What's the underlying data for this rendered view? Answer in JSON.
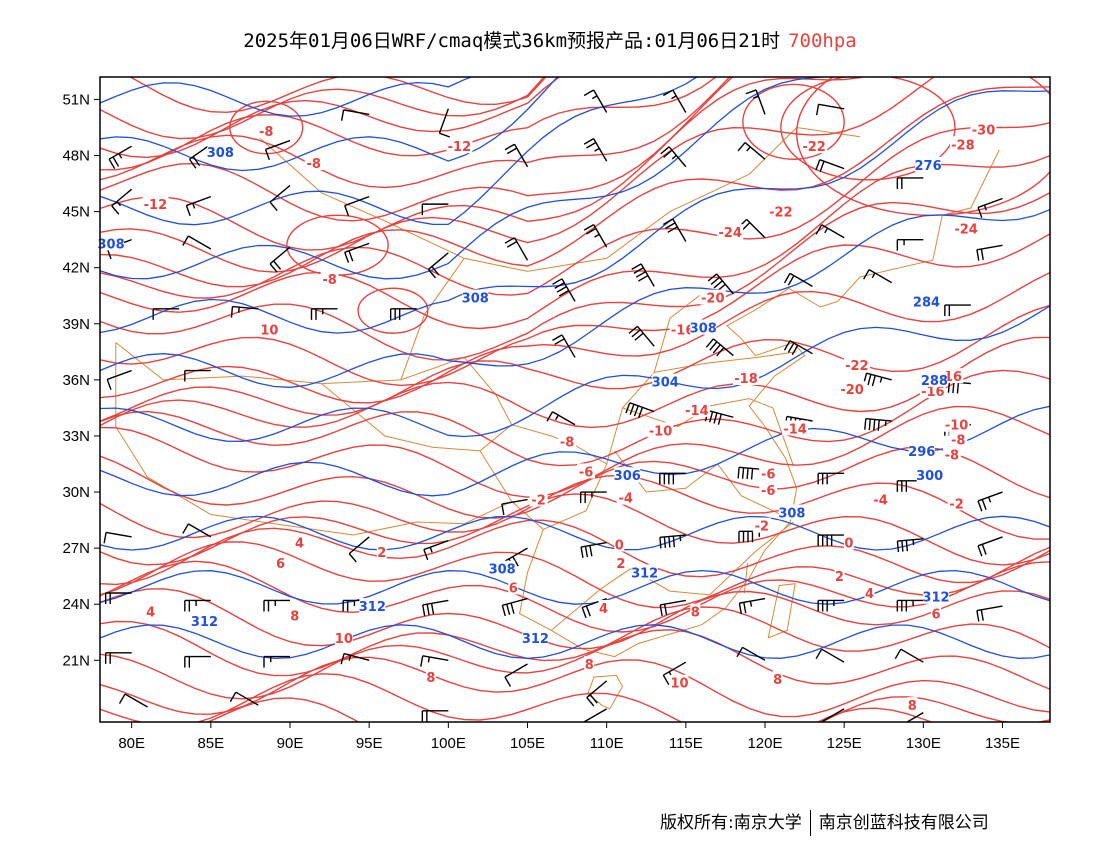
{
  "header": {
    "title": "2025年01月06日WRF/cmaq模式36km预报产品:01月06日21时",
    "level": "700hpa"
  },
  "axes": {
    "lat_ticks": [
      "51N",
      "48N",
      "45N",
      "42N",
      "39N",
      "36N",
      "33N",
      "30N",
      "27N",
      "24N",
      "21N"
    ],
    "lon_ticks": [
      "80E",
      "85E",
      "90E",
      "95E",
      "100E",
      "105E",
      "110E",
      "115E",
      "120E",
      "125E",
      "130E",
      "135E"
    ]
  },
  "colors": {
    "temperature": "#e8423f",
    "height": "#1f4fe0",
    "border": "#d9883a",
    "wind": "#000000"
  },
  "temperature_labels": [
    {
      "text": "-8",
      "lon": 88.5,
      "lat": 49.3
    },
    {
      "text": "-8",
      "lon": 91.5,
      "lat": 47.6
    },
    {
      "text": "-12",
      "lon": 81.5,
      "lat": 45.4
    },
    {
      "text": "-12",
      "lon": 100.7,
      "lat": 48.5
    },
    {
      "text": "-8",
      "lon": 92.5,
      "lat": 41.4
    },
    {
      "text": "10",
      "lon": 88.7,
      "lat": 38.7
    },
    {
      "text": "-24",
      "lon": 117.8,
      "lat": 43.9
    },
    {
      "text": "-22",
      "lon": 121,
      "lat": 45
    },
    {
      "text": "-22",
      "lon": 123.1,
      "lat": 48.5
    },
    {
      "text": "-30",
      "lon": 133.8,
      "lat": 49.4
    },
    {
      "text": "-28",
      "lon": 132.5,
      "lat": 48.6
    },
    {
      "text": "-24",
      "lon": 132.7,
      "lat": 44.1
    },
    {
      "text": "-20",
      "lon": 116.7,
      "lat": 40.4
    },
    {
      "text": "-16",
      "lon": 114.8,
      "lat": 38.7
    },
    {
      "text": "-22",
      "lon": 125.8,
      "lat": 36.8
    },
    {
      "text": "-18",
      "lon": 118.8,
      "lat": 36.1
    },
    {
      "text": "-20",
      "lon": 125.5,
      "lat": 35.5
    },
    {
      "text": "-16",
      "lon": 130.6,
      "lat": 35.4
    },
    {
      "text": "-16",
      "lon": 131.7,
      "lat": 36.2
    },
    {
      "text": "-14",
      "lon": 115.7,
      "lat": 34.4
    },
    {
      "text": "-14",
      "lon": 121.9,
      "lat": 33.4
    },
    {
      "text": "-10",
      "lon": 113.4,
      "lat": 33.3
    },
    {
      "text": "-10",
      "lon": 132.1,
      "lat": 33.6
    },
    {
      "text": "-8",
      "lon": 107.5,
      "lat": 32.7
    },
    {
      "text": "-8",
      "lon": 132.2,
      "lat": 32.8
    },
    {
      "text": "-8",
      "lon": 131.8,
      "lat": 32.0
    },
    {
      "text": "-6",
      "lon": 108.7,
      "lat": 31.1
    },
    {
      "text": "-6",
      "lon": 120.2,
      "lat": 31.0
    },
    {
      "text": "-6",
      "lon": 120.2,
      "lat": 30.1
    },
    {
      "text": "-4",
      "lon": 111.2,
      "lat": 29.7
    },
    {
      "text": "-4",
      "lon": 127.3,
      "lat": 29.6
    },
    {
      "text": "-2",
      "lon": 105.7,
      "lat": 29.6
    },
    {
      "text": "-2",
      "lon": 119.8,
      "lat": 28.2
    },
    {
      "text": "-2",
      "lon": 132.1,
      "lat": 29.4
    },
    {
      "text": "0",
      "lon": 110.8,
      "lat": 27.2
    },
    {
      "text": "0",
      "lon": 125.3,
      "lat": 27.3
    },
    {
      "text": "2",
      "lon": 95.8,
      "lat": 26.8
    },
    {
      "text": "2",
      "lon": 110.9,
      "lat": 26.2
    },
    {
      "text": "2",
      "lon": 124.7,
      "lat": 25.5
    },
    {
      "text": "4",
      "lon": 90.6,
      "lat": 27.3
    },
    {
      "text": "4",
      "lon": 81.2,
      "lat": 23.6
    },
    {
      "text": "4",
      "lon": 109.8,
      "lat": 23.8
    },
    {
      "text": "4",
      "lon": 126.6,
      "lat": 24.6
    },
    {
      "text": "6",
      "lon": 89.4,
      "lat": 26.2
    },
    {
      "text": "6",
      "lon": 104.1,
      "lat": 24.9
    },
    {
      "text": "6",
      "lon": 130.8,
      "lat": 23.5
    },
    {
      "text": "8",
      "lon": 90.3,
      "lat": 23.4
    },
    {
      "text": "8",
      "lon": 115.6,
      "lat": 23.6
    },
    {
      "text": "8",
      "lon": 108.9,
      "lat": 20.8
    },
    {
      "text": "8",
      "lon": 98.9,
      "lat": 20.1
    },
    {
      "text": "8",
      "lon": 120.8,
      "lat": 20.0
    },
    {
      "text": "8",
      "lon": 129.3,
      "lat": 18.6
    },
    {
      "text": "10",
      "lon": 93.4,
      "lat": 22.2
    },
    {
      "text": "10",
      "lon": 114.6,
      "lat": 19.8
    }
  ],
  "height_labels": [
    {
      "text": "308",
      "lon": 85.6,
      "lat": 48.2
    },
    {
      "text": "308",
      "lon": 78.7,
      "lat": 43.3
    },
    {
      "text": "308",
      "lon": 101.7,
      "lat": 40.4
    },
    {
      "text": "308",
      "lon": 116.1,
      "lat": 38.8
    },
    {
      "text": "304",
      "lon": 113.7,
      "lat": 35.9
    },
    {
      "text": "306",
      "lon": 111.3,
      "lat": 30.9
    },
    {
      "text": "308",
      "lon": 121.7,
      "lat": 28.9
    },
    {
      "text": "308",
      "lon": 103.4,
      "lat": 25.9
    },
    {
      "text": "312",
      "lon": 112.4,
      "lat": 25.7
    },
    {
      "text": "312",
      "lon": 95.2,
      "lat": 23.9
    },
    {
      "text": "312",
      "lon": 84.6,
      "lat": 23.1
    },
    {
      "text": "312",
      "lon": 105.5,
      "lat": 22.2
    },
    {
      "text": "312",
      "lon": 130.8,
      "lat": 24.4
    },
    {
      "text": "276",
      "lon": 130.3,
      "lat": 47.5
    },
    {
      "text": "284",
      "lon": 130.2,
      "lat": 40.2
    },
    {
      "text": "288",
      "lon": 130.7,
      "lat": 36.0
    },
    {
      "text": "296",
      "lon": 129.9,
      "lat": 32.2
    },
    {
      "text": "300",
      "lon": 130.4,
      "lat": 30.9
    }
  ],
  "wind_barbs": [
    {
      "lon": 80,
      "lat": 48.5,
      "dir": 240,
      "spd": 25
    },
    {
      "lon": 85,
      "lat": 48.6,
      "dir": 235,
      "spd": 20
    },
    {
      "lon": 90,
      "lat": 48.8,
      "dir": 250,
      "spd": 10
    },
    {
      "lon": 95,
      "lat": 50.2,
      "dir": 280,
      "spd": 10
    },
    {
      "lon": 100,
      "lat": 50.5,
      "dir": 200,
      "spd": 10
    },
    {
      "lon": 110,
      "lat": 50.3,
      "dir": 330,
      "spd": 15
    },
    {
      "lon": 115,
      "lat": 50.3,
      "dir": 330,
      "spd": 15
    },
    {
      "lon": 120,
      "lat": 50.2,
      "dir": 340,
      "spd": 15
    },
    {
      "lon": 125,
      "lat": 50.5,
      "dir": 280,
      "spd": 10
    },
    {
      "lon": 80,
      "lat": 46.2,
      "dir": 230,
      "spd": 15
    },
    {
      "lon": 85,
      "lat": 45.8,
      "dir": 250,
      "spd": 15
    },
    {
      "lon": 90,
      "lat": 46.4,
      "dir": 230,
      "spd": 10
    },
    {
      "lon": 95,
      "lat": 45.8,
      "dir": 250,
      "spd": 10
    },
    {
      "lon": 100,
      "lat": 45.4,
      "dir": 270,
      "spd": 10
    },
    {
      "lon": 105,
      "lat": 47.4,
      "dir": 330,
      "spd": 20
    },
    {
      "lon": 110,
      "lat": 47.7,
      "dir": 330,
      "spd": 25
    },
    {
      "lon": 115,
      "lat": 47.4,
      "dir": 320,
      "spd": 25
    },
    {
      "lon": 120,
      "lat": 47.8,
      "dir": 310,
      "spd": 15
    },
    {
      "lon": 125,
      "lat": 47.3,
      "dir": 290,
      "spd": 20
    },
    {
      "lon": 130,
      "lat": 46.8,
      "dir": 270,
      "spd": 20
    },
    {
      "lon": 135,
      "lat": 45.7,
      "dir": 250,
      "spd": 15
    },
    {
      "lon": 80,
      "lat": 43.5,
      "dir": 250,
      "spd": 10
    },
    {
      "lon": 85,
      "lat": 43.0,
      "dir": 300,
      "spd": 10
    },
    {
      "lon": 90,
      "lat": 43.1,
      "dir": 230,
      "spd": 20
    },
    {
      "lon": 95,
      "lat": 43.3,
      "dir": 250,
      "spd": 20
    },
    {
      "lon": 100,
      "lat": 42.8,
      "dir": 230,
      "spd": 20
    },
    {
      "lon": 105,
      "lat": 42.4,
      "dir": 330,
      "spd": 20
    },
    {
      "lon": 110,
      "lat": 43.1,
      "dir": 330,
      "spd": 25
    },
    {
      "lon": 115,
      "lat": 43.4,
      "dir": 330,
      "spd": 30
    },
    {
      "lon": 120,
      "lat": 43.6,
      "dir": 315,
      "spd": 20
    },
    {
      "lon": 125,
      "lat": 43.6,
      "dir": 300,
      "spd": 15
    },
    {
      "lon": 130,
      "lat": 43.5,
      "dir": 270,
      "spd": 15
    },
    {
      "lon": 135,
      "lat": 43.2,
      "dir": 260,
      "spd": 20
    },
    {
      "lon": 83,
      "lat": 39.8,
      "dir": 270,
      "spd": 10
    },
    {
      "lon": 88,
      "lat": 39.8,
      "dir": 275,
      "spd": 15
    },
    {
      "lon": 93,
      "lat": 39.8,
      "dir": 270,
      "spd": 25
    },
    {
      "lon": 98,
      "lat": 39.8,
      "dir": 270,
      "spd": 30
    },
    {
      "lon": 108,
      "lat": 40.2,
      "dir": 330,
      "spd": 40
    },
    {
      "lon": 113,
      "lat": 41.0,
      "dir": 330,
      "spd": 40
    },
    {
      "lon": 118,
      "lat": 40.6,
      "dir": 320,
      "spd": 40
    },
    {
      "lon": 123,
      "lat": 41.0,
      "dir": 300,
      "spd": 20
    },
    {
      "lon": 128,
      "lat": 41.2,
      "dir": 300,
      "spd": 15
    },
    {
      "lon": 133,
      "lat": 40.0,
      "dir": 270,
      "spd": 20
    },
    {
      "lon": 80,
      "lat": 36.5,
      "dir": 250,
      "spd": 10
    },
    {
      "lon": 85,
      "lat": 36.5,
      "dir": 270,
      "spd": 10
    },
    {
      "lon": 108,
      "lat": 37.2,
      "dir": 330,
      "spd": 20
    },
    {
      "lon": 113,
      "lat": 37.8,
      "dir": 320,
      "spd": 30
    },
    {
      "lon": 118,
      "lat": 37.3,
      "dir": 310,
      "spd": 40
    },
    {
      "lon": 123,
      "lat": 37.4,
      "dir": 300,
      "spd": 30
    },
    {
      "lon": 128,
      "lat": 36.0,
      "dir": 285,
      "spd": 35
    },
    {
      "lon": 133,
      "lat": 35.8,
      "dir": 275,
      "spd": 40
    },
    {
      "lon": 108,
      "lat": 33.6,
      "dir": 300,
      "spd": 15
    },
    {
      "lon": 113,
      "lat": 34.3,
      "dir": 290,
      "spd": 40
    },
    {
      "lon": 118,
      "lat": 34.0,
      "dir": 285,
      "spd": 40
    },
    {
      "lon": 123,
      "lat": 33.8,
      "dir": 280,
      "spd": 45
    },
    {
      "lon": 128,
      "lat": 33.8,
      "dir": 275,
      "spd": 45
    },
    {
      "lon": 133,
      "lat": 33.6,
      "dir": 270,
      "spd": 35
    },
    {
      "lon": 105,
      "lat": 29.6,
      "dir": 260,
      "spd": 10
    },
    {
      "lon": 110,
      "lat": 30.0,
      "dir": 270,
      "spd": 25
    },
    {
      "lon": 115,
      "lat": 31.0,
      "dir": 270,
      "spd": 40
    },
    {
      "lon": 120,
      "lat": 31.2,
      "dir": 275,
      "spd": 40
    },
    {
      "lon": 125,
      "lat": 31.0,
      "dir": 270,
      "spd": 30
    },
    {
      "lon": 130,
      "lat": 30.6,
      "dir": 270,
      "spd": 30
    },
    {
      "lon": 135,
      "lat": 30.0,
      "dir": 250,
      "spd": 25
    },
    {
      "lon": 80,
      "lat": 27.6,
      "dir": 280,
      "spd": 10
    },
    {
      "lon": 85,
      "lat": 27.6,
      "dir": 300,
      "spd": 10
    },
    {
      "lon": 95,
      "lat": 27.6,
      "dir": 230,
      "spd": 10
    },
    {
      "lon": 100,
      "lat": 27.4,
      "dir": 250,
      "spd": 15
    },
    {
      "lon": 105,
      "lat": 27.0,
      "dir": 240,
      "spd": 30
    },
    {
      "lon": 110,
      "lat": 27.3,
      "dir": 260,
      "spd": 30
    },
    {
      "lon": 115,
      "lat": 27.7,
      "dir": 265,
      "spd": 45
    },
    {
      "lon": 120,
      "lat": 27.9,
      "dir": 270,
      "spd": 45
    },
    {
      "lon": 125,
      "lat": 27.7,
      "dir": 270,
      "spd": 40
    },
    {
      "lon": 130,
      "lat": 27.5,
      "dir": 265,
      "spd": 35
    },
    {
      "lon": 135,
      "lat": 27.6,
      "dir": 250,
      "spd": 20
    },
    {
      "lon": 80,
      "lat": 24.6,
      "dir": 270,
      "spd": 20
    },
    {
      "lon": 85,
      "lat": 24.2,
      "dir": 270,
      "spd": 25
    },
    {
      "lon": 90,
      "lat": 24.2,
      "dir": 270,
      "spd": 25
    },
    {
      "lon": 95,
      "lat": 24.2,
      "dir": 270,
      "spd": 25
    },
    {
      "lon": 100,
      "lat": 24.2,
      "dir": 260,
      "spd": 30
    },
    {
      "lon": 105,
      "lat": 24.3,
      "dir": 255,
      "spd": 30
    },
    {
      "lon": 110,
      "lat": 24.3,
      "dir": 250,
      "spd": 20
    },
    {
      "lon": 115,
      "lat": 24.2,
      "dir": 260,
      "spd": 20
    },
    {
      "lon": 120,
      "lat": 24.3,
      "dir": 260,
      "spd": 25
    },
    {
      "lon": 125,
      "lat": 24.2,
      "dir": 270,
      "spd": 35
    },
    {
      "lon": 130,
      "lat": 24.2,
      "dir": 270,
      "spd": 35
    },
    {
      "lon": 135,
      "lat": 23.9,
      "dir": 260,
      "spd": 20
    },
    {
      "lon": 80,
      "lat": 21.4,
      "dir": 270,
      "spd": 20
    },
    {
      "lon": 85,
      "lat": 21.2,
      "dir": 270,
      "spd": 20
    },
    {
      "lon": 90,
      "lat": 21.2,
      "dir": 270,
      "spd": 15
    },
    {
      "lon": 95,
      "lat": 21.0,
      "dir": 285,
      "spd": 15
    },
    {
      "lon": 100,
      "lat": 21.0,
      "dir": 280,
      "spd": 15
    },
    {
      "lon": 105,
      "lat": 20.8,
      "dir": 240,
      "spd": 10
    },
    {
      "lon": 110,
      "lat": 19.9,
      "dir": 230,
      "spd": 20
    },
    {
      "lon": 115,
      "lat": 20.9,
      "dir": 240,
      "spd": 15
    },
    {
      "lon": 120,
      "lat": 21.0,
      "dir": 300,
      "spd": 10
    },
    {
      "lon": 125,
      "lat": 20.9,
      "dir": 300,
      "spd": 10
    },
    {
      "lon": 130,
      "lat": 20.9,
      "dir": 300,
      "spd": 10
    },
    {
      "lon": 81,
      "lat": 18.5,
      "dir": 300,
      "spd": 10
    },
    {
      "lon": 88,
      "lat": 18.6,
      "dir": 300,
      "spd": 10
    },
    {
      "lon": 100,
      "lat": 18.3,
      "dir": 270,
      "spd": 20
    },
    {
      "lon": 110,
      "lat": 18.4,
      "dir": 240,
      "spd": 10
    },
    {
      "lon": 125,
      "lat": 18.4,
      "dir": 240,
      "spd": 10
    },
    {
      "lon": 130,
      "lat": 18.2,
      "dir": 240,
      "spd": 10
    }
  ],
  "footer": {
    "copyright": "版权所有:南京大学",
    "company": "南京创蓝科技有限公司"
  }
}
